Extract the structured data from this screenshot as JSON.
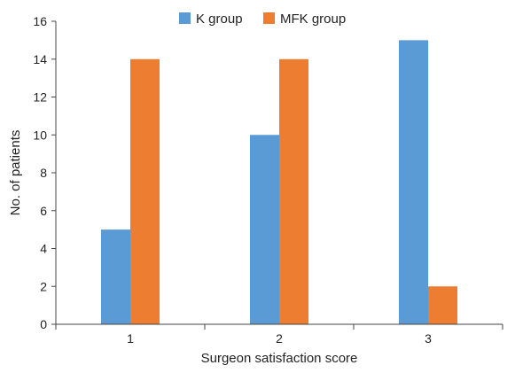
{
  "chart_data": {
    "type": "bar",
    "categories": [
      "1",
      "2",
      "3"
    ],
    "series": [
      {
        "name": "K group",
        "values": [
          5,
          10,
          15
        ],
        "color": "#5b9bd5"
      },
      {
        "name": "MFK group",
        "values": [
          14,
          14,
          2
        ],
        "color": "#ed7d31"
      }
    ],
    "xlabel": "Surgeon satisfaction score",
    "ylabel": "No. of patients",
    "ylim": [
      0,
      16
    ],
    "yticks": [
      "0",
      "2",
      "4",
      "6",
      "8",
      "10",
      "12",
      "14",
      "16"
    ],
    "grid": false,
    "legend_position": "top-center"
  }
}
